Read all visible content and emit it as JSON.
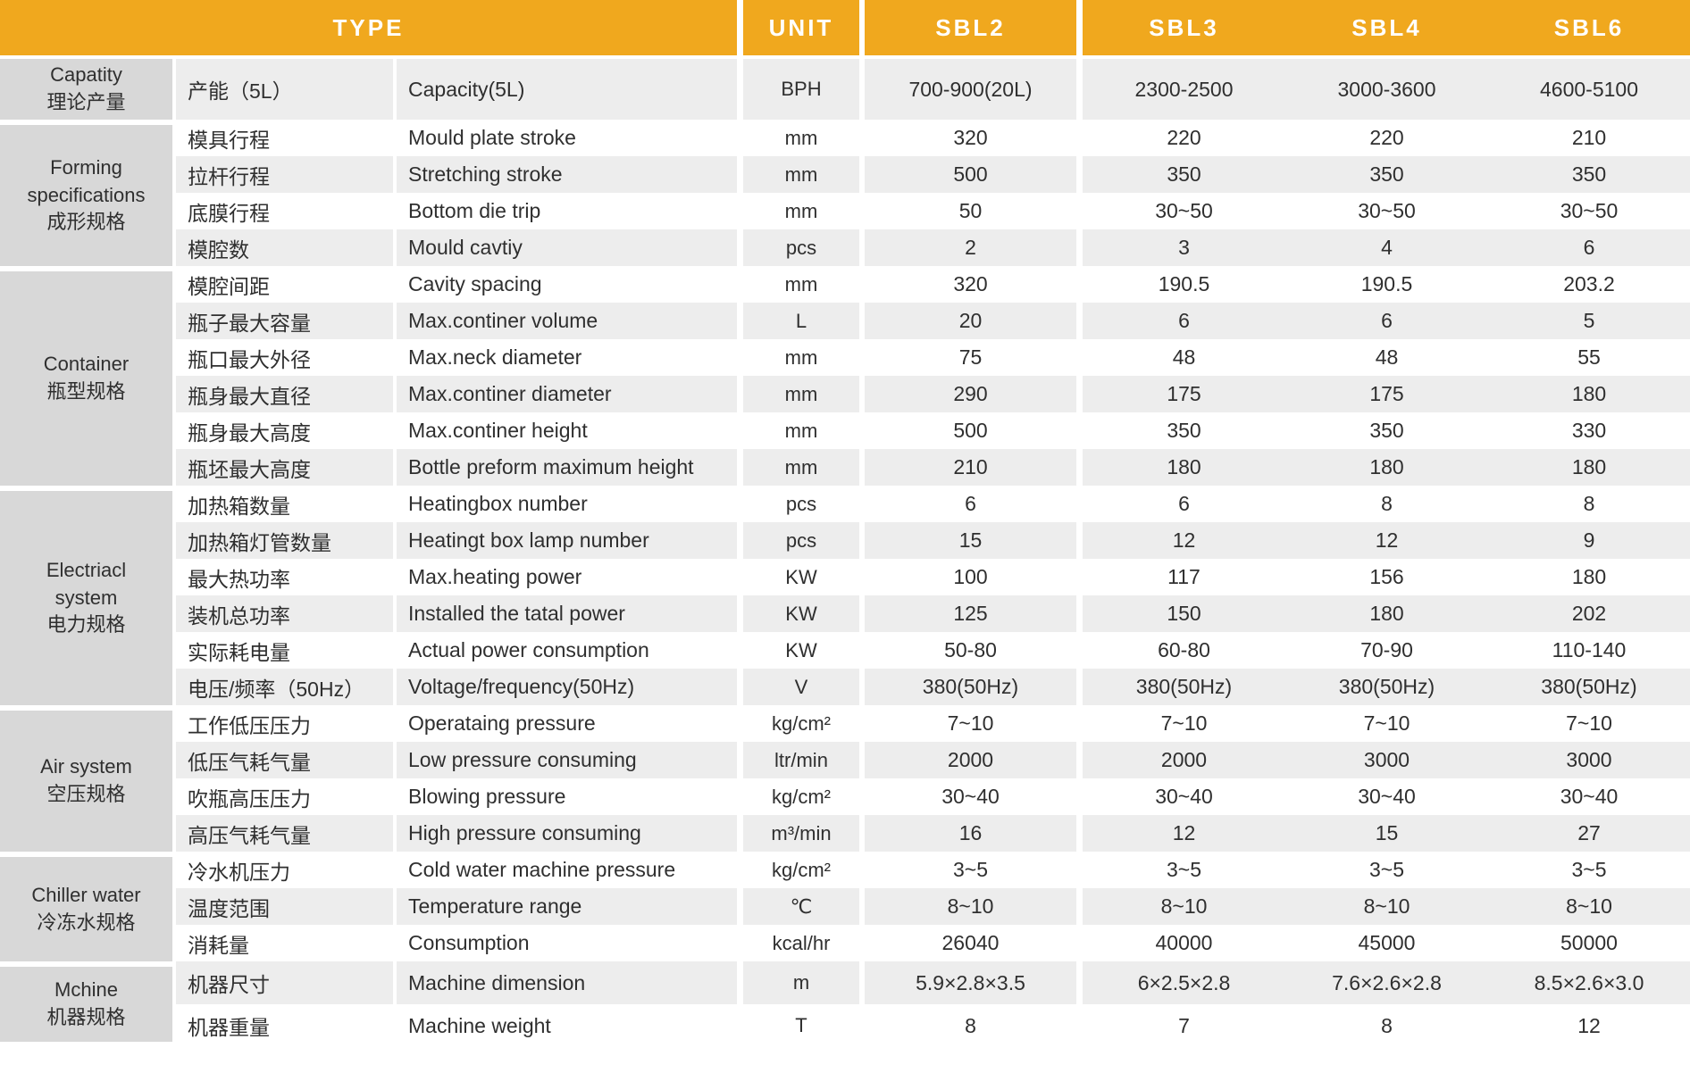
{
  "header": {
    "type_label": "TYPE",
    "unit_label": "UNIT",
    "models": [
      "SBL2",
      "SBL3",
      "SBL4",
      "SBL6"
    ]
  },
  "colors": {
    "header_bg": "#f0a81e",
    "header_text": "#ffffff",
    "group_cell_bg": "#d8d8d8",
    "stripe_bg": "#ededed",
    "row_bg": "#ffffff",
    "text": "#2f2f2f"
  },
  "sections": [
    {
      "group_en": "Capatity",
      "group_cn": "理论产量",
      "rows": [
        {
          "cn": "产能（5L）",
          "en": "Capacity(5L)",
          "unit": "BPH",
          "values": [
            "700-900(20L)",
            "2300-2500",
            "3000-3600",
            "4600-5100"
          ]
        }
      ]
    },
    {
      "group_en": "Forming specifications",
      "group_cn": "成形规格",
      "rows": [
        {
          "cn": "模具行程",
          "en": "Mould plate stroke",
          "unit": "mm",
          "values": [
            "320",
            "220",
            "220",
            "210"
          ]
        },
        {
          "cn": "拉杆行程",
          "en": "Stretching stroke",
          "unit": "mm",
          "values": [
            "500",
            "350",
            "350",
            "350"
          ]
        },
        {
          "cn": "底膜行程",
          "en": "Bottom die trip",
          "unit": "mm",
          "values": [
            "50",
            "30~50",
            "30~50",
            "30~50"
          ]
        },
        {
          "cn": "模腔数",
          "en": "Mould cavtiy",
          "unit": "pcs",
          "values": [
            "2",
            "3",
            "4",
            "6"
          ]
        }
      ]
    },
    {
      "group_en": "Container",
      "group_cn": "瓶型规格",
      "rows": [
        {
          "cn": "模腔间距",
          "en": "Cavity spacing",
          "unit": "mm",
          "values": [
            "320",
            "190.5",
            "190.5",
            "203.2"
          ]
        },
        {
          "cn": "瓶子最大容量",
          "en": "Max.continer volume",
          "unit": "L",
          "values": [
            "20",
            "6",
            "6",
            "5"
          ]
        },
        {
          "cn": "瓶口最大外径",
          "en": "Max.neck diameter",
          "unit": "mm",
          "values": [
            "75",
            "48",
            "48",
            "55"
          ]
        },
        {
          "cn": "瓶身最大直径",
          "en": "Max.continer diameter",
          "unit": "mm",
          "values": [
            "290",
            "175",
            "175",
            "180"
          ]
        },
        {
          "cn": "瓶身最大高度",
          "en": "Max.continer height",
          "unit": "mm",
          "values": [
            "500",
            "350",
            "350",
            "330"
          ]
        },
        {
          "cn": "瓶坯最大高度",
          "en": "Bottle preform maximum height",
          "unit": "mm",
          "values": [
            "210",
            "180",
            "180",
            "180"
          ]
        }
      ]
    },
    {
      "group_en": "Electriacl system",
      "group_cn": "电力规格",
      "rows": [
        {
          "cn": "加热箱数量",
          "en": "Heatingbox number",
          "unit": "pcs",
          "values": [
            "6",
            "6",
            "8",
            "8"
          ]
        },
        {
          "cn": "加热箱灯管数量",
          "en": "Heatingt box lamp number",
          "unit": "pcs",
          "values": [
            "15",
            "12",
            "12",
            "9"
          ]
        },
        {
          "cn": "最大热功率",
          "en": "Max.heating power",
          "unit": "KW",
          "values": [
            "100",
            "117",
            "156",
            "180"
          ]
        },
        {
          "cn": "装机总功率",
          "en": "Installed the tatal power",
          "unit": "KW",
          "values": [
            "125",
            "150",
            "180",
            "202"
          ]
        },
        {
          "cn": "实际耗电量",
          "en": "Actual power consumption",
          "unit": "KW",
          "values": [
            "50-80",
            "60-80",
            "70-90",
            "110-140"
          ]
        },
        {
          "cn": "电压/频率（50Hz）",
          "en": "Voltage/frequency(50Hz)",
          "unit": "V",
          "values": [
            "380(50Hz)",
            "380(50Hz)",
            "380(50Hz)",
            "380(50Hz)"
          ]
        }
      ]
    },
    {
      "group_en": "Air system",
      "group_cn": "空压规格",
      "rows": [
        {
          "cn": "工作低压压力",
          "en": "Operataing pressure",
          "unit": "kg/cm²",
          "values": [
            "7~10",
            "7~10",
            "7~10",
            "7~10"
          ]
        },
        {
          "cn": "低压气耗气量",
          "en": "Low pressure consuming",
          "unit": "ltr/min",
          "values": [
            "2000",
            "2000",
            "3000",
            "3000"
          ]
        },
        {
          "cn": "吹瓶高压压力",
          "en": "Blowing pressure",
          "unit": "kg/cm²",
          "values": [
            "30~40",
            "30~40",
            "30~40",
            "30~40"
          ]
        },
        {
          "cn": "高压气耗气量",
          "en": "High pressure consuming",
          "unit": "m³/min",
          "values": [
            "16",
            "12",
            "15",
            "27"
          ]
        }
      ]
    },
    {
      "group_en": "Chiller water",
      "group_cn": "冷冻水规格",
      "rows": [
        {
          "cn": "冷水机压力",
          "en": "Cold water machine pressure",
          "unit": "kg/cm²",
          "values": [
            "3~5",
            "3~5",
            "3~5",
            "3~5"
          ]
        },
        {
          "cn": "温度范围",
          "en": "Temperature range",
          "unit": "℃",
          "values": [
            "8~10",
            "8~10",
            "8~10",
            "8~10"
          ]
        },
        {
          "cn": "消耗量",
          "en": "Consumption",
          "unit": "kcal/hr",
          "values": [
            "26040",
            "40000",
            "45000",
            "50000"
          ]
        }
      ]
    },
    {
      "group_en": "Mchine",
      "group_cn": "机器规格",
      "rows": [
        {
          "cn": "机器尺寸",
          "en": "Machine dimension",
          "unit": "m",
          "values": [
            "5.9×2.8×3.5",
            "6×2.5×2.8",
            "7.6×2.6×2.8",
            "8.5×2.6×3.0"
          ]
        },
        {
          "cn": "机器重量",
          "en": "Machine weight",
          "unit": "T",
          "values": [
            "8",
            "7",
            "8",
            "12"
          ]
        }
      ]
    }
  ]
}
